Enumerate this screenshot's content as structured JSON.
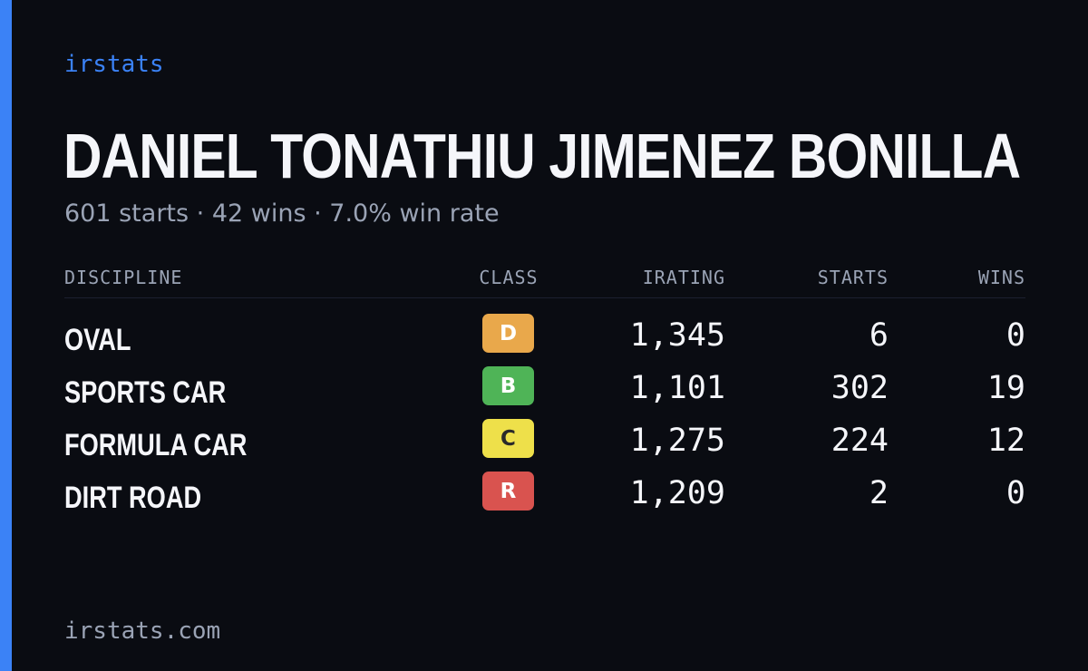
{
  "brand": "irstats",
  "driver_name": "DANIEL TONATHIU JIMENEZ BONILLA",
  "summary": "601 starts · 42 wins · 7.0% win rate",
  "table": {
    "headers": {
      "discipline": "DISCIPLINE",
      "class": "CLASS",
      "irating": "IRATING",
      "starts": "STARTS",
      "wins": "WINS"
    },
    "rows": [
      {
        "discipline": "OVAL",
        "class": "D",
        "class_color": "#e9a84b",
        "class_text": "#ffffff",
        "irating": "1,345",
        "starts": "6",
        "wins": "0"
      },
      {
        "discipline": "SPORTS CAR",
        "class": "B",
        "class_color": "#4fb457",
        "class_text": "#ffffff",
        "irating": "1,101",
        "starts": "302",
        "wins": "19"
      },
      {
        "discipline": "FORMULA CAR",
        "class": "C",
        "class_color": "#eee04a",
        "class_text": "#2a2a2a",
        "irating": "1,275",
        "starts": "224",
        "wins": "12"
      },
      {
        "discipline": "DIRT ROAD",
        "class": "R",
        "class_color": "#d9534f",
        "class_text": "#ffffff",
        "irating": "1,209",
        "starts": "2",
        "wins": "0"
      }
    ]
  },
  "footer": "irstats.com",
  "colors": {
    "accent": "#3b82f6",
    "background": "#0a0c12",
    "muted": "#9aa3b5",
    "text": "#f5f6fa"
  }
}
